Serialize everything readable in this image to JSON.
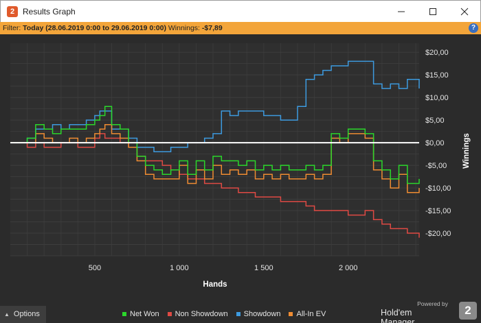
{
  "window": {
    "title": "Results Graph",
    "logo_glyph": "2"
  },
  "filter": {
    "label": "Filter:",
    "range": "Today (28.06.2019 0:00 to 29.06.2019 0:00)",
    "winnings_label": "Winnings:",
    "winnings_value": "-$7,89",
    "help_glyph": "?"
  },
  "footer": {
    "options_label": "Options",
    "powered_by": "Powered by",
    "brand_name": "Hold'em Manager",
    "brand_logo_glyph": "2"
  },
  "colors": {
    "net_won": "#2bd82b",
    "non_showdown": "#e04a44",
    "showdown": "#3d9be0",
    "all_in_ev": "#f08c32",
    "zero_line": "#ffffff",
    "accent": "#f3a53a"
  },
  "chart_data": {
    "type": "line",
    "xlabel": "Hands",
    "ylabel": "Winnings",
    "xlim": [
      0,
      2420
    ],
    "ylim": [
      -25,
      22
    ],
    "x_ticks": [
      500,
      1000,
      1500,
      2000
    ],
    "x_tick_labels": [
      "500",
      "1 000",
      "1 500",
      "2 000"
    ],
    "y_ticks": [
      20,
      15,
      10,
      5,
      0,
      -5,
      -10,
      -15,
      -20
    ],
    "y_tick_labels": [
      "$20,00",
      "$15,00",
      "$10,00",
      "$5,00",
      "$0,00",
      "-$5,00",
      "-$10,00",
      "-$15,00",
      "-$20,00"
    ],
    "grid": true,
    "legend_position": "bottom",
    "x": [
      0,
      100,
      150,
      200,
      250,
      300,
      350,
      400,
      450,
      500,
      530,
      560,
      600,
      650,
      700,
      750,
      800,
      850,
      900,
      950,
      1000,
      1050,
      1100,
      1150,
      1200,
      1250,
      1300,
      1350,
      1400,
      1450,
      1500,
      1550,
      1600,
      1650,
      1700,
      1750,
      1800,
      1850,
      1900,
      1950,
      2000,
      2050,
      2100,
      2150,
      2200,
      2250,
      2300,
      2350,
      2420
    ],
    "series": [
      {
        "name": "Net Won",
        "values": [
          0,
          1,
          4,
          3,
          2,
          3,
          3,
          3,
          4,
          5,
          6,
          8,
          4,
          3,
          0,
          -3,
          -5,
          -6,
          -7,
          -6,
          -4,
          -7,
          -4,
          -6,
          -3,
          -4,
          -4,
          -5,
          -4,
          -6,
          -5,
          -6,
          -5,
          -6,
          -6,
          -5,
          -6,
          -5,
          2,
          1,
          3,
          3,
          2,
          -4,
          -6,
          -8,
          -5,
          -9,
          -8
        ]
      },
      {
        "name": "Non Showdown",
        "values": [
          0,
          -1,
          0,
          -1,
          -1,
          0,
          0,
          -1,
          -1,
          1,
          2,
          1,
          1,
          0,
          -1,
          -3,
          -4,
          -4,
          -5,
          -6,
          -7,
          -8,
          -8,
          -9,
          -9,
          -10,
          -10,
          -11,
          -11,
          -12,
          -12,
          -12,
          -13,
          -13,
          -13,
          -14,
          -15,
          -15,
          -15,
          -15,
          -16,
          -16,
          -15,
          -17,
          -18,
          -19,
          -19,
          -20,
          -21
        ]
      },
      {
        "name": "Showdown",
        "values": [
          0,
          1,
          3,
          3,
          4,
          3,
          4,
          4,
          5,
          6,
          7,
          7,
          3,
          3,
          1,
          -1,
          -1,
          -2,
          -2,
          -1,
          -1,
          0,
          0,
          1,
          2,
          7,
          6,
          7,
          7,
          7,
          6,
          6,
          5,
          5,
          8,
          14,
          15,
          16,
          17,
          17,
          18,
          18,
          18,
          13,
          12,
          13,
          12,
          14,
          12
        ]
      },
      {
        "name": "All-In EV",
        "values": [
          0,
          0,
          2,
          1,
          0,
          0,
          1,
          0,
          1,
          2,
          3,
          4,
          2,
          1,
          -1,
          -4,
          -7,
          -8,
          -8,
          -8,
          -5,
          -9,
          -6,
          -8,
          -5,
          -7,
          -6,
          -7,
          -6,
          -8,
          -7,
          -8,
          -7,
          -8,
          -8,
          -7,
          -8,
          -7,
          1,
          0,
          2,
          2,
          1,
          -6,
          -8,
          -10,
          -7,
          -11,
          -10
        ]
      }
    ]
  }
}
